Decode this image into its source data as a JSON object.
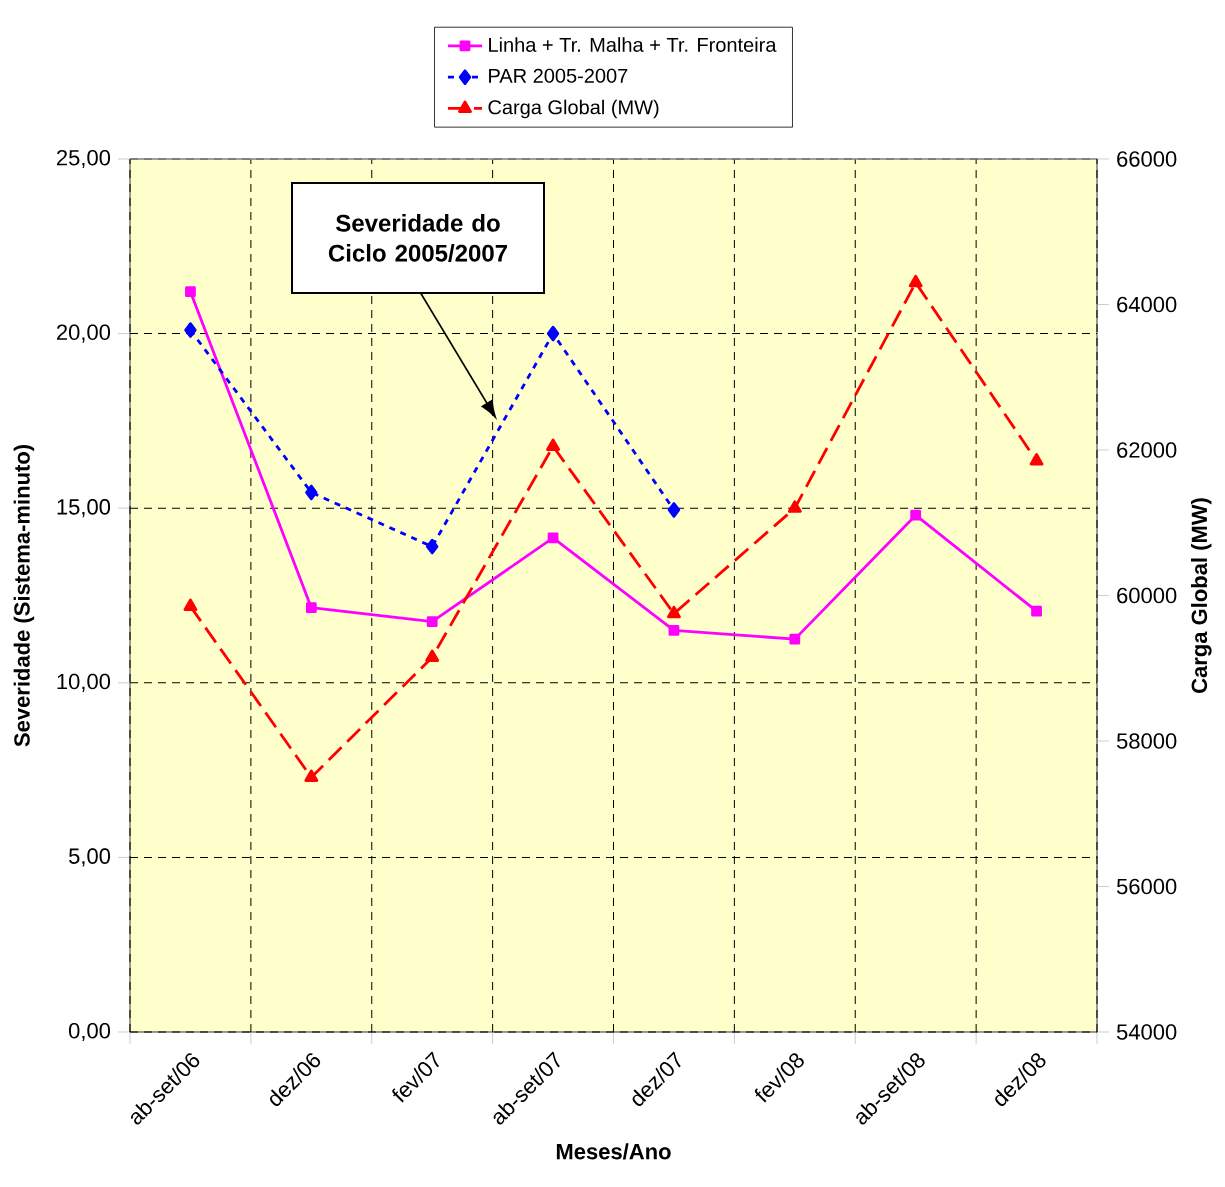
{
  "chart_data": {
    "type": "line",
    "xlabel": "Meses/Ano",
    "ylabel": "Severidade (Sistema-minuto)",
    "y2label": "Carga Global (MW)",
    "categories": [
      "ab-set/06",
      "dez/06",
      "fev/07",
      "ab-set/07",
      "dez/07",
      "fev/08",
      "ab-set/08",
      "dez/08"
    ],
    "series": [
      {
        "name": "Linha + Tr. Malha + Tr. Fronteira",
        "color": "#ff00ff",
        "marker": "square",
        "line_style": "solid",
        "values": [
          21.2,
          12.15,
          11.75,
          14.15,
          11.5,
          11.25,
          14.8,
          12.05
        ]
      },
      {
        "name": "PAR 2005-2007",
        "color": "#0000ff",
        "marker": "diamond",
        "line_style": "dotted",
        "values": [
          20.1,
          15.45,
          13.9,
          20.0,
          14.95,
          null,
          null,
          null
        ]
      },
      {
        "name": "Carga Global (MW)",
        "color": "#ff0000",
        "marker": "triangle",
        "line_style": "dashed",
        "axis": "y2",
        "values": [
          59850,
          57500,
          59150,
          62050,
          59750,
          61200,
          64300,
          61850
        ]
      }
    ],
    "ylim": [
      0,
      25
    ],
    "yticks": [
      {
        "value": 0,
        "label": "0,00"
      },
      {
        "value": 5,
        "label": "5,00"
      },
      {
        "value": 10,
        "label": "10,00"
      },
      {
        "value": 15,
        "label": "15,00"
      },
      {
        "value": 20,
        "label": "20,00"
      },
      {
        "value": 25,
        "label": "25,00"
      }
    ],
    "y2lim": [
      54000,
      66000
    ],
    "y2ticks": [
      54000,
      56000,
      58000,
      60000,
      62000,
      64000,
      66000
    ],
    "grid": true,
    "legend": "top",
    "annotations": [
      "Severidade do Ciclo 2005/2007"
    ]
  }
}
